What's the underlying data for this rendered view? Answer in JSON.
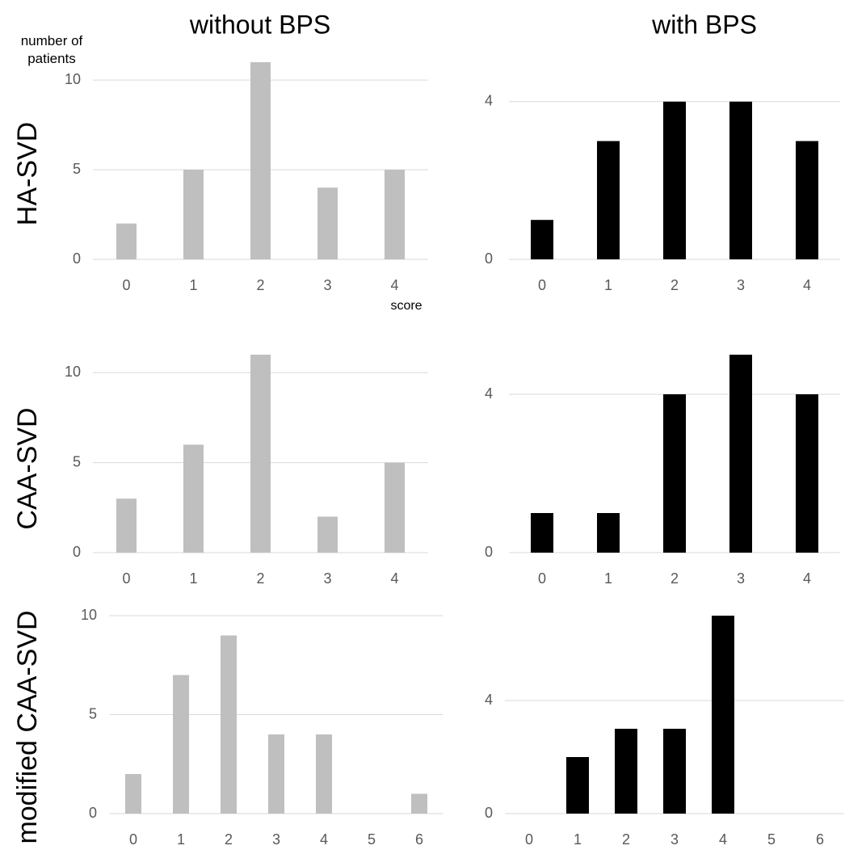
{
  "column_titles": [
    "without BPS",
    "with BPS"
  ],
  "row_labels": [
    "HA-SVD",
    "CAA-SVD",
    "modified CAA-SVD"
  ],
  "chart_data": [
    {
      "type": "bar",
      "y_label": "number of patients",
      "x_label": "score",
      "categories": [
        "0",
        "1",
        "2",
        "3",
        "4"
      ],
      "values": [
        2,
        5,
        11,
        4,
        5
      ],
      "color": "#bfbfbf",
      "ylim": [
        0,
        11
      ],
      "yticks": [
        0,
        5,
        10
      ],
      "grid": true
    },
    {
      "type": "bar",
      "categories": [
        "0",
        "1",
        "2",
        "3",
        "4"
      ],
      "values": [
        1,
        3,
        4,
        4,
        3
      ],
      "color": "#000000",
      "ylim": [
        0,
        5
      ],
      "yticks": [
        0,
        4
      ],
      "grid": true
    },
    {
      "type": "bar",
      "categories": [
        "0",
        "1",
        "2",
        "3",
        "4"
      ],
      "values": [
        3,
        6,
        11,
        2,
        5
      ],
      "color": "#bfbfbf",
      "ylim": [
        0,
        11
      ],
      "yticks": [
        0,
        5,
        10
      ],
      "grid": true
    },
    {
      "type": "bar",
      "categories": [
        "0",
        "1",
        "2",
        "3",
        "4"
      ],
      "values": [
        1,
        1,
        4,
        5,
        4
      ],
      "color": "#000000",
      "ylim": [
        0,
        5
      ],
      "yticks": [
        0,
        4
      ],
      "grid": true
    },
    {
      "type": "bar",
      "categories": [
        "0",
        "1",
        "2",
        "3",
        "4",
        "5",
        "6"
      ],
      "values": [
        2,
        7,
        9,
        4,
        4,
        0,
        1
      ],
      "color": "#bfbfbf",
      "ylim": [
        0,
        10
      ],
      "yticks": [
        0,
        5,
        10
      ],
      "grid": true
    },
    {
      "type": "bar",
      "categories": [
        "0",
        "1",
        "2",
        "3",
        "4",
        "5",
        "6"
      ],
      "values": [
        0,
        2,
        3,
        3,
        7,
        0,
        0
      ],
      "color": "#000000",
      "ylim": [
        0,
        7
      ],
      "yticks": [
        0,
        4
      ],
      "grid": true
    }
  ]
}
